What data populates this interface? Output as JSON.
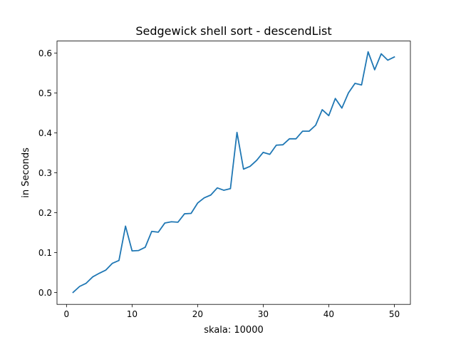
{
  "chart_data": {
    "type": "line",
    "title": "Sedgewick shell sort - descendList",
    "xlabel": "skala: 10000",
    "ylabel": "in Seconds",
    "xlim": [
      -1.45,
      52.45
    ],
    "ylim": [
      -0.03,
      0.63
    ],
    "x_ticks": [
      0,
      10,
      20,
      30,
      40,
      50
    ],
    "x_tick_labels": [
      "0",
      "10",
      "20",
      "30",
      "40",
      "50"
    ],
    "y_ticks": [
      0.0,
      0.1,
      0.2,
      0.3,
      0.4,
      0.5,
      0.6
    ],
    "y_tick_labels": [
      "0.0",
      "0.1",
      "0.2",
      "0.3",
      "0.4",
      "0.5",
      "0.6"
    ],
    "grid": false,
    "series": [
      {
        "color": "#1f77b4",
        "x": [
          1,
          2,
          3,
          4,
          5,
          6,
          7,
          8,
          9,
          10,
          11,
          12,
          13,
          14,
          15,
          16,
          17,
          18,
          19,
          20,
          21,
          22,
          23,
          24,
          25,
          26,
          27,
          28,
          29,
          30,
          31,
          32,
          33,
          34,
          35,
          36,
          37,
          38,
          39,
          40,
          41,
          42,
          43,
          44,
          45,
          46,
          47,
          48,
          49,
          50
        ],
        "y": [
          0.0,
          0.015,
          0.023,
          0.039,
          0.048,
          0.056,
          0.073,
          0.08,
          0.166,
          0.104,
          0.105,
          0.113,
          0.153,
          0.151,
          0.174,
          0.177,
          0.176,
          0.197,
          0.198,
          0.224,
          0.237,
          0.244,
          0.262,
          0.256,
          0.26,
          0.401,
          0.309,
          0.316,
          0.331,
          0.351,
          0.346,
          0.369,
          0.37,
          0.385,
          0.385,
          0.404,
          0.404,
          0.419,
          0.458,
          0.443,
          0.486,
          0.462,
          0.5,
          0.524,
          0.52,
          0.603,
          0.558,
          0.598,
          0.582,
          0.59
        ]
      }
    ]
  }
}
